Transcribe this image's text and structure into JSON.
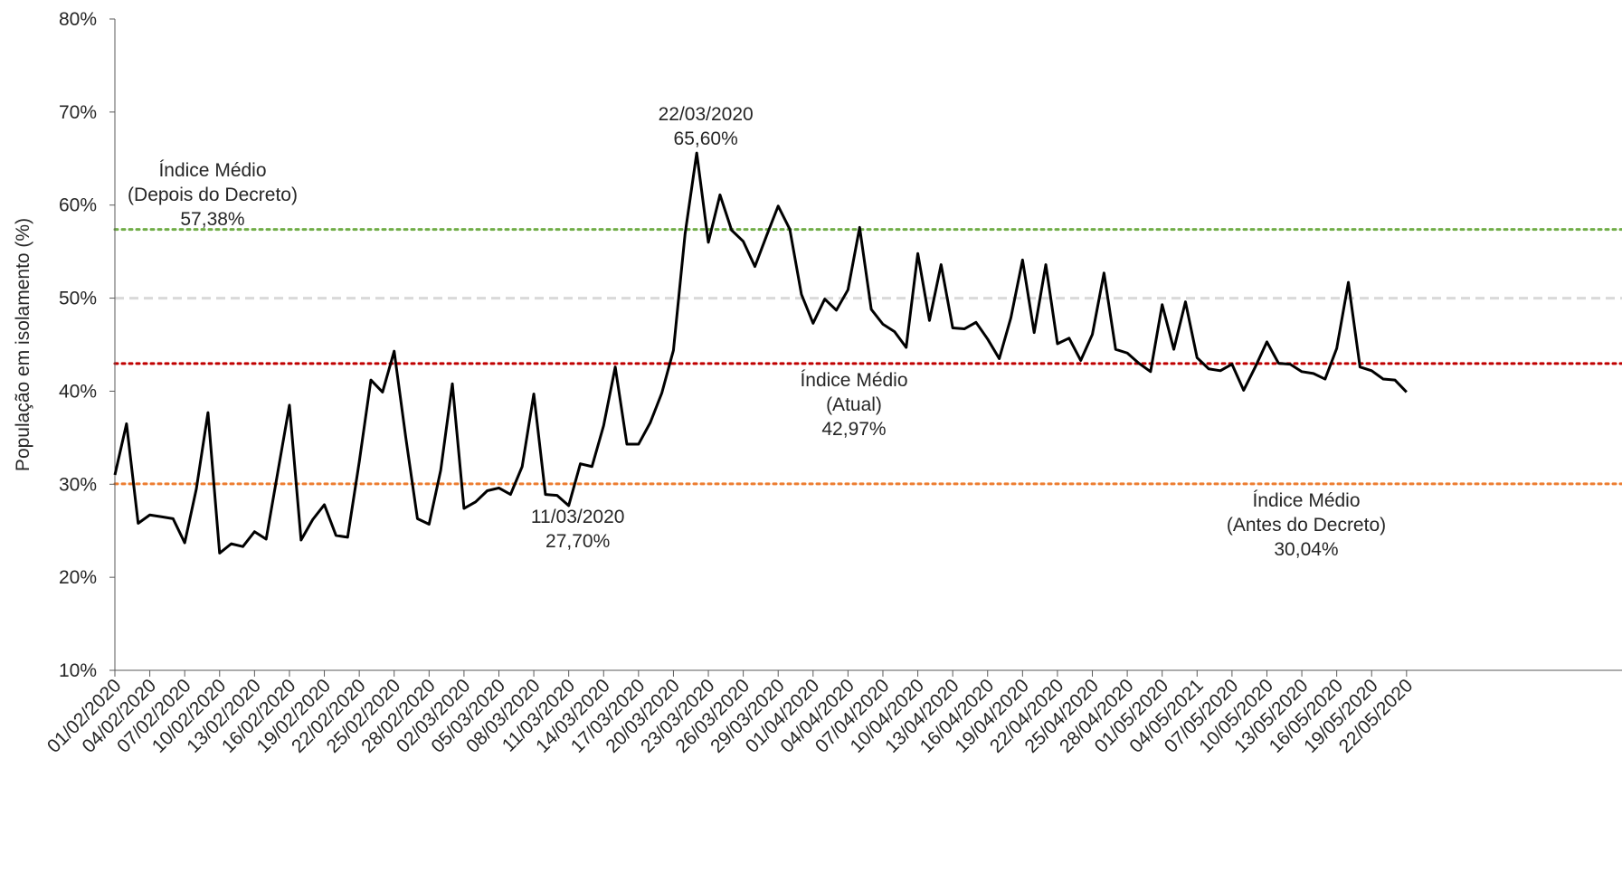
{
  "chart_data": {
    "type": "line",
    "y_label": "População em isolamento (%)",
    "ylim": [
      10,
      80
    ],
    "yticks": [
      {
        "value": 10,
        "label": "10%"
      },
      {
        "value": 20,
        "label": "20%"
      },
      {
        "value": 30,
        "label": "30%"
      },
      {
        "value": 40,
        "label": "40%"
      },
      {
        "value": 50,
        "label": "50%"
      },
      {
        "value": 60,
        "label": "60%"
      },
      {
        "value": 70,
        "label": "70%"
      },
      {
        "value": 80,
        "label": "80%"
      }
    ],
    "categories": [
      "01/02/2020",
      null,
      null,
      "04/02/2020",
      null,
      null,
      "07/02/2020",
      null,
      null,
      "10/02/2020",
      null,
      null,
      "13/02/2020",
      null,
      null,
      "16/02/2020",
      null,
      null,
      "19/02/2020",
      null,
      null,
      "22/02/2020",
      null,
      null,
      "25/02/2020",
      null,
      null,
      "28/02/2020",
      null,
      null,
      "02/03/2020",
      null,
      null,
      "05/03/2020",
      null,
      null,
      "08/03/2020",
      null,
      null,
      "11/03/2020",
      null,
      null,
      "14/03/2020",
      null,
      null,
      "17/03/2020",
      null,
      null,
      "20/03/2020",
      null,
      null,
      "23/03/2020",
      null,
      null,
      "26/03/2020",
      null,
      null,
      "29/03/2020",
      null,
      null,
      "01/04/2020",
      null,
      null,
      "04/04/2020",
      null,
      null,
      "07/04/2020",
      null,
      null,
      "10/04/2020",
      null,
      null,
      "13/04/2020",
      null,
      null,
      "16/04/2020",
      null,
      null,
      "19/04/2020",
      null,
      null,
      "22/04/2020",
      null,
      null,
      "25/04/2020",
      null,
      null,
      "28/04/2020",
      null,
      null,
      "01/05/2020",
      null,
      null,
      "04/05/2021",
      null,
      null,
      "07/05/2020",
      null,
      null,
      "10/05/2020",
      null,
      null,
      "13/05/2020",
      null,
      null,
      "16/05/2020",
      null,
      null,
      "19/05/2020",
      null,
      null,
      "22/05/2020"
    ],
    "series": [
      {
        "color": "#000000",
        "values": [
          31.0,
          36.5,
          25.8,
          26.7,
          26.5,
          26.3,
          23.7,
          29.5,
          37.7,
          22.6,
          23.6,
          23.3,
          24.9,
          24.1,
          31.3,
          38.5,
          24.0,
          26.2,
          27.8,
          24.5,
          24.3,
          32.4,
          41.2,
          39.9,
          44.3,
          35.0,
          26.3,
          25.7,
          31.5,
          40.8,
          27.4,
          28.1,
          29.3,
          29.6,
          28.9,
          31.9,
          39.7,
          28.9,
          28.8,
          27.7,
          32.2,
          31.9,
          36.3,
          42.6,
          34.3,
          34.3,
          36.6,
          39.8,
          44.4,
          56.9,
          65.6,
          56.0,
          61.1,
          57.3,
          56.1,
          53.4,
          56.7,
          59.9,
          57.4,
          50.4,
          47.3,
          49.9,
          48.7,
          50.9,
          57.6,
          48.8,
          47.2,
          46.4,
          44.7,
          54.8,
          47.6,
          53.6,
          46.8,
          46.7,
          47.4,
          45.6,
          43.5,
          47.9,
          54.1,
          46.3,
          53.6,
          45.1,
          45.7,
          43.3,
          46.1,
          52.7,
          44.5,
          44.1,
          43.0,
          42.1,
          49.3,
          44.5,
          49.6,
          43.6,
          42.4,
          42.2,
          42.9,
          40.1,
          42.6,
          45.3,
          43.0,
          42.9,
          42.1,
          41.9,
          41.3,
          44.6,
          51.7,
          42.6,
          42.2,
          41.3,
          41.2,
          39.9
        ]
      }
    ],
    "grid_line": {
      "value": 50,
      "color": "#d9d9d9"
    },
    "reference_lines": [
      {
        "value": 57.38,
        "color": "#70ad47",
        "name": "Índice Médio",
        "detail": "(Depois do Decreto)",
        "value_label": "57,38%"
      },
      {
        "value": 42.97,
        "color": "#c00000",
        "name": "Índice Médio",
        "detail": "(Atual)",
        "value_label": "42,97%"
      },
      {
        "value": 30.04,
        "color": "#ed7d31",
        "name": "Índice Médio",
        "detail": "(Antes do Decreto)",
        "value_label": "30,04%"
      }
    ],
    "annotations": [
      {
        "date": "22/03/2020",
        "value": 65.6,
        "value_label": "65,60%"
      },
      {
        "date": "11/03/2020",
        "value": 27.7,
        "value_label": "27,70%"
      }
    ]
  }
}
